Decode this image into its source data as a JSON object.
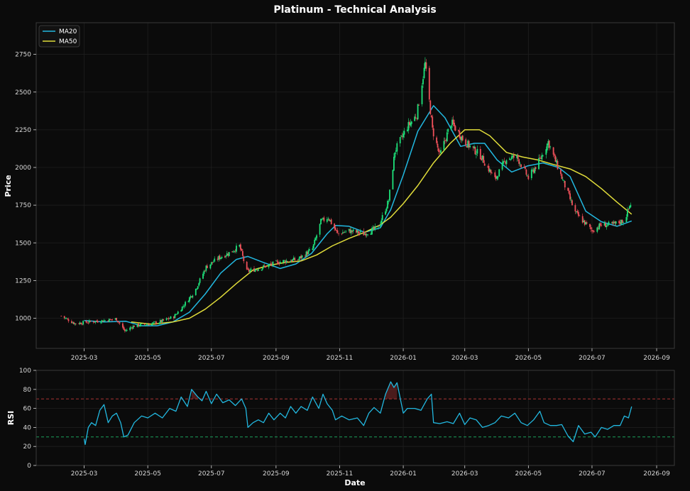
{
  "colors": {
    "background": "#0b0b0b",
    "axes_edge": "#3a3a3a",
    "grid": "#1f1f1f",
    "text": "#ffffff",
    "tick_text": "#d8d8d8",
    "ma20": "#22b8e0",
    "ma50": "#e0dc3a",
    "up_candle": "#1de27a",
    "down_candle": "#f0505a",
    "rsi_line": "#22b8e0",
    "overbought": "#c03838",
    "oversold": "#1fb86a"
  },
  "title": "Platinum - Technical Analysis",
  "chart_data": [
    {
      "type": "candlestick",
      "ylabel": "Price",
      "ylim": [
        800,
        2960
      ],
      "xlim": [
        "2025-01-14",
        "2026-09-18"
      ],
      "yticks": [
        1000,
        1250,
        1500,
        1750,
        2000,
        2250,
        2500,
        2750
      ],
      "xticks": [
        "2025-03",
        "2025-05",
        "2025-07",
        "2025-09",
        "2025-11",
        "2026-01",
        "2026-03",
        "2026-05",
        "2026-07",
        "2026-09"
      ],
      "grid": true,
      "legend": {
        "placement": "top-left",
        "entries": [
          "MA20",
          "MA50"
        ]
      },
      "price_anchors": [
        [
          "2025-02-07",
          1015
        ],
        [
          "2025-02-20",
          965
        ],
        [
          "2025-03-05",
          975
        ],
        [
          "2025-03-20",
          985
        ],
        [
          "2025-04-01",
          995
        ],
        [
          "2025-04-09",
          915
        ],
        [
          "2025-04-18",
          950
        ],
        [
          "2025-05-01",
          960
        ],
        [
          "2025-05-12",
          975
        ],
        [
          "2025-05-26",
          1010
        ],
        [
          "2025-06-05",
          1090
        ],
        [
          "2025-06-15",
          1180
        ],
        [
          "2025-06-26",
          1340
        ],
        [
          "2025-07-08",
          1400
        ],
        [
          "2025-07-20",
          1440
        ],
        [
          "2025-07-28",
          1480
        ],
        [
          "2025-08-04",
          1310
        ],
        [
          "2025-08-20",
          1340
        ],
        [
          "2025-09-05",
          1375
        ],
        [
          "2025-09-22",
          1390
        ],
        [
          "2025-10-06",
          1460
        ],
        [
          "2025-10-14",
          1640
        ],
        [
          "2025-10-21",
          1670
        ],
        [
          "2025-10-30",
          1560
        ],
        [
          "2025-11-10",
          1580
        ],
        [
          "2025-11-24",
          1560
        ],
        [
          "2025-12-08",
          1600
        ],
        [
          "2025-12-18",
          1780
        ],
        [
          "2025-12-24",
          2110
        ],
        [
          "2026-01-05",
          2270
        ],
        [
          "2026-01-14",
          2350
        ],
        [
          "2026-01-22",
          2690
        ],
        [
          "2026-01-29",
          2250
        ],
        [
          "2026-02-05",
          2080
        ],
        [
          "2026-02-16",
          2300
        ],
        [
          "2026-03-01",
          2170
        ],
        [
          "2026-03-16",
          2080
        ],
        [
          "2026-03-30",
          1920
        ],
        [
          "2026-04-10",
          2060
        ],
        [
          "2026-04-20",
          2070
        ],
        [
          "2026-05-01",
          1930
        ],
        [
          "2026-05-12",
          2050
        ],
        [
          "2026-05-20",
          2170
        ],
        [
          "2026-06-01",
          1950
        ],
        [
          "2026-06-15",
          1700
        ],
        [
          "2026-07-01",
          1580
        ],
        [
          "2026-07-10",
          1620
        ],
        [
          "2026-07-21",
          1620
        ],
        [
          "2026-08-01",
          1650
        ],
        [
          "2026-08-07",
          1760
        ]
      ],
      "series": [
        {
          "name": "MA20",
          "points": [
            [
              "2025-03-01",
              985
            ],
            [
              "2025-03-20",
              975
            ],
            [
              "2025-04-10",
              980
            ],
            [
              "2025-04-25",
              950
            ],
            [
              "2025-05-10",
              950
            ],
            [
              "2025-05-25",
              975
            ],
            [
              "2025-06-10",
              1040
            ],
            [
              "2025-06-25",
              1160
            ],
            [
              "2025-07-10",
              1300
            ],
            [
              "2025-07-25",
              1390
            ],
            [
              "2025-08-05",
              1410
            ],
            [
              "2025-08-20",
              1370
            ],
            [
              "2025-09-05",
              1330
            ],
            [
              "2025-09-20",
              1360
            ],
            [
              "2025-10-05",
              1430
            ],
            [
              "2025-10-20",
              1560
            ],
            [
              "2025-10-28",
              1615
            ],
            [
              "2025-11-10",
              1610
            ],
            [
              "2025-11-25",
              1570
            ],
            [
              "2025-12-10",
              1600
            ],
            [
              "2025-12-20",
              1720
            ],
            [
              "2026-01-01",
              1950
            ],
            [
              "2026-01-15",
              2240
            ],
            [
              "2026-01-30",
              2410
            ],
            [
              "2026-02-10",
              2330
            ],
            [
              "2026-02-25",
              2140
            ],
            [
              "2026-03-10",
              2160
            ],
            [
              "2026-03-20",
              2160
            ],
            [
              "2026-04-01",
              2050
            ],
            [
              "2026-04-15",
              1970
            ],
            [
              "2026-04-30",
              2010
            ],
            [
              "2026-05-15",
              2030
            ],
            [
              "2026-05-30",
              2000
            ],
            [
              "2026-06-10",
              1940
            ],
            [
              "2026-06-25",
              1710
            ],
            [
              "2026-07-10",
              1640
            ],
            [
              "2026-07-25",
              1610
            ],
            [
              "2026-08-08",
              1645
            ]
          ]
        },
        {
          "name": "MA50",
          "points": [
            [
              "2025-04-15",
              975
            ],
            [
              "2025-05-05",
              960
            ],
            [
              "2025-05-25",
              975
            ],
            [
              "2025-06-10",
              1000
            ],
            [
              "2025-06-25",
              1060
            ],
            [
              "2025-07-10",
              1140
            ],
            [
              "2025-07-25",
              1230
            ],
            [
              "2025-08-10",
              1320
            ],
            [
              "2025-08-25",
              1350
            ],
            [
              "2025-09-10",
              1370
            ],
            [
              "2025-09-25",
              1380
            ],
            [
              "2025-10-10",
              1420
            ],
            [
              "2025-10-25",
              1480
            ],
            [
              "2025-11-10",
              1530
            ],
            [
              "2025-11-25",
              1570
            ],
            [
              "2025-12-10",
              1620
            ],
            [
              "2025-12-20",
              1670
            ],
            [
              "2026-01-01",
              1760
            ],
            [
              "2026-01-15",
              1880
            ],
            [
              "2026-01-30",
              2030
            ],
            [
              "2026-02-15",
              2160
            ],
            [
              "2026-03-01",
              2250
            ],
            [
              "2026-03-15",
              2250
            ],
            [
              "2026-03-25",
              2210
            ],
            [
              "2026-04-10",
              2100
            ],
            [
              "2026-04-25",
              2070
            ],
            [
              "2026-05-10",
              2050
            ],
            [
              "2026-05-25",
              2020
            ],
            [
              "2026-06-10",
              1990
            ],
            [
              "2026-06-25",
              1940
            ],
            [
              "2026-07-10",
              1860
            ],
            [
              "2026-07-25",
              1770
            ],
            [
              "2026-08-08",
              1690
            ]
          ]
        }
      ]
    },
    {
      "type": "line",
      "xlabel": "Date",
      "ylabel": "RSI",
      "ylim": [
        0,
        100
      ],
      "xlim": [
        "2025-01-14",
        "2026-09-18"
      ],
      "yticks": [
        0,
        20,
        40,
        60,
        80,
        100
      ],
      "xticks": [
        "2025-03",
        "2025-05",
        "2025-07",
        "2025-09",
        "2025-11",
        "2026-01",
        "2026-03",
        "2026-05",
        "2026-07",
        "2026-09"
      ],
      "overbought": 70,
      "oversold": 30,
      "series": [
        {
          "name": "RSI",
          "points": [
            [
              "2025-03-01",
              28
            ],
            [
              "2025-03-02",
              22
            ],
            [
              "2025-03-05",
              40
            ],
            [
              "2025-03-08",
              45
            ],
            [
              "2025-03-12",
              42
            ],
            [
              "2025-03-16",
              58
            ],
            [
              "2025-03-20",
              64
            ],
            [
              "2025-03-24",
              45
            ],
            [
              "2025-03-28",
              52
            ],
            [
              "2025-04-01",
              55
            ],
            [
              "2025-04-05",
              45
            ],
            [
              "2025-04-08",
              30
            ],
            [
              "2025-04-12",
              32
            ],
            [
              "2025-04-18",
              45
            ],
            [
              "2025-04-25",
              52
            ],
            [
              "2025-05-01",
              50
            ],
            [
              "2025-05-08",
              55
            ],
            [
              "2025-05-15",
              50
            ],
            [
              "2025-05-22",
              60
            ],
            [
              "2025-05-28",
              57
            ],
            [
              "2025-06-02",
              72
            ],
            [
              "2025-06-08",
              62
            ],
            [
              "2025-06-12",
              80
            ],
            [
              "2025-06-18",
              72
            ],
            [
              "2025-06-22",
              68
            ],
            [
              "2025-06-26",
              78
            ],
            [
              "2025-07-01",
              65
            ],
            [
              "2025-07-06",
              75
            ],
            [
              "2025-07-12",
              66
            ],
            [
              "2025-07-18",
              69
            ],
            [
              "2025-07-24",
              63
            ],
            [
              "2025-07-30",
              70
            ],
            [
              "2025-08-03",
              60
            ],
            [
              "2025-08-05",
              40
            ],
            [
              "2025-08-10",
              45
            ],
            [
              "2025-08-15",
              48
            ],
            [
              "2025-08-20",
              45
            ],
            [
              "2025-08-25",
              55
            ],
            [
              "2025-08-30",
              48
            ],
            [
              "2025-09-05",
              55
            ],
            [
              "2025-09-10",
              50
            ],
            [
              "2025-09-15",
              62
            ],
            [
              "2025-09-20",
              55
            ],
            [
              "2025-09-25",
              62
            ],
            [
              "2025-10-01",
              58
            ],
            [
              "2025-10-06",
              72
            ],
            [
              "2025-10-12",
              60
            ],
            [
              "2025-10-16",
              75
            ],
            [
              "2025-10-20",
              65
            ],
            [
              "2025-10-25",
              58
            ],
            [
              "2025-10-28",
              48
            ],
            [
              "2025-11-03",
              52
            ],
            [
              "2025-11-10",
              48
            ],
            [
              "2025-11-18",
              50
            ],
            [
              "2025-11-24",
              42
            ],
            [
              "2025-11-29",
              55
            ],
            [
              "2025-12-04",
              61
            ],
            [
              "2025-12-10",
              55
            ],
            [
              "2025-12-15",
              75
            ],
            [
              "2025-12-20",
              88
            ],
            [
              "2025-12-23",
              82
            ],
            [
              "2025-12-26",
              87
            ],
            [
              "2026-01-01",
              55
            ],
            [
              "2026-01-05",
              60
            ],
            [
              "2026-01-12",
              60
            ],
            [
              "2026-01-18",
              58
            ],
            [
              "2026-01-24",
              70
            ],
            [
              "2026-01-28",
              75
            ],
            [
              "2026-01-30",
              45
            ],
            [
              "2026-02-05",
              44
            ],
            [
              "2026-02-12",
              46
            ],
            [
              "2026-02-18",
              44
            ],
            [
              "2026-02-24",
              55
            ],
            [
              "2026-03-01",
              43
            ],
            [
              "2026-03-06",
              50
            ],
            [
              "2026-03-12",
              48
            ],
            [
              "2026-03-18",
              40
            ],
            [
              "2026-03-24",
              42
            ],
            [
              "2026-03-30",
              45
            ],
            [
              "2026-04-05",
              52
            ],
            [
              "2026-04-12",
              50
            ],
            [
              "2026-04-18",
              55
            ],
            [
              "2026-04-24",
              45
            ],
            [
              "2026-04-30",
              42
            ],
            [
              "2026-05-06",
              48
            ],
            [
              "2026-05-12",
              57
            ],
            [
              "2026-05-16",
              45
            ],
            [
              "2026-05-22",
              42
            ],
            [
              "2026-05-28",
              42
            ],
            [
              "2026-06-02",
              43
            ],
            [
              "2026-06-08",
              31
            ],
            [
              "2026-06-13",
              25
            ],
            [
              "2026-06-18",
              42
            ],
            [
              "2026-06-24",
              33
            ],
            [
              "2026-06-30",
              35
            ],
            [
              "2026-07-04",
              30
            ],
            [
              "2026-07-10",
              40
            ],
            [
              "2026-07-16",
              38
            ],
            [
              "2026-07-22",
              42
            ],
            [
              "2026-07-28",
              42
            ],
            [
              "2026-08-01",
              52
            ],
            [
              "2026-08-05",
              50
            ],
            [
              "2026-08-08",
              62
            ]
          ]
        }
      ]
    }
  ]
}
